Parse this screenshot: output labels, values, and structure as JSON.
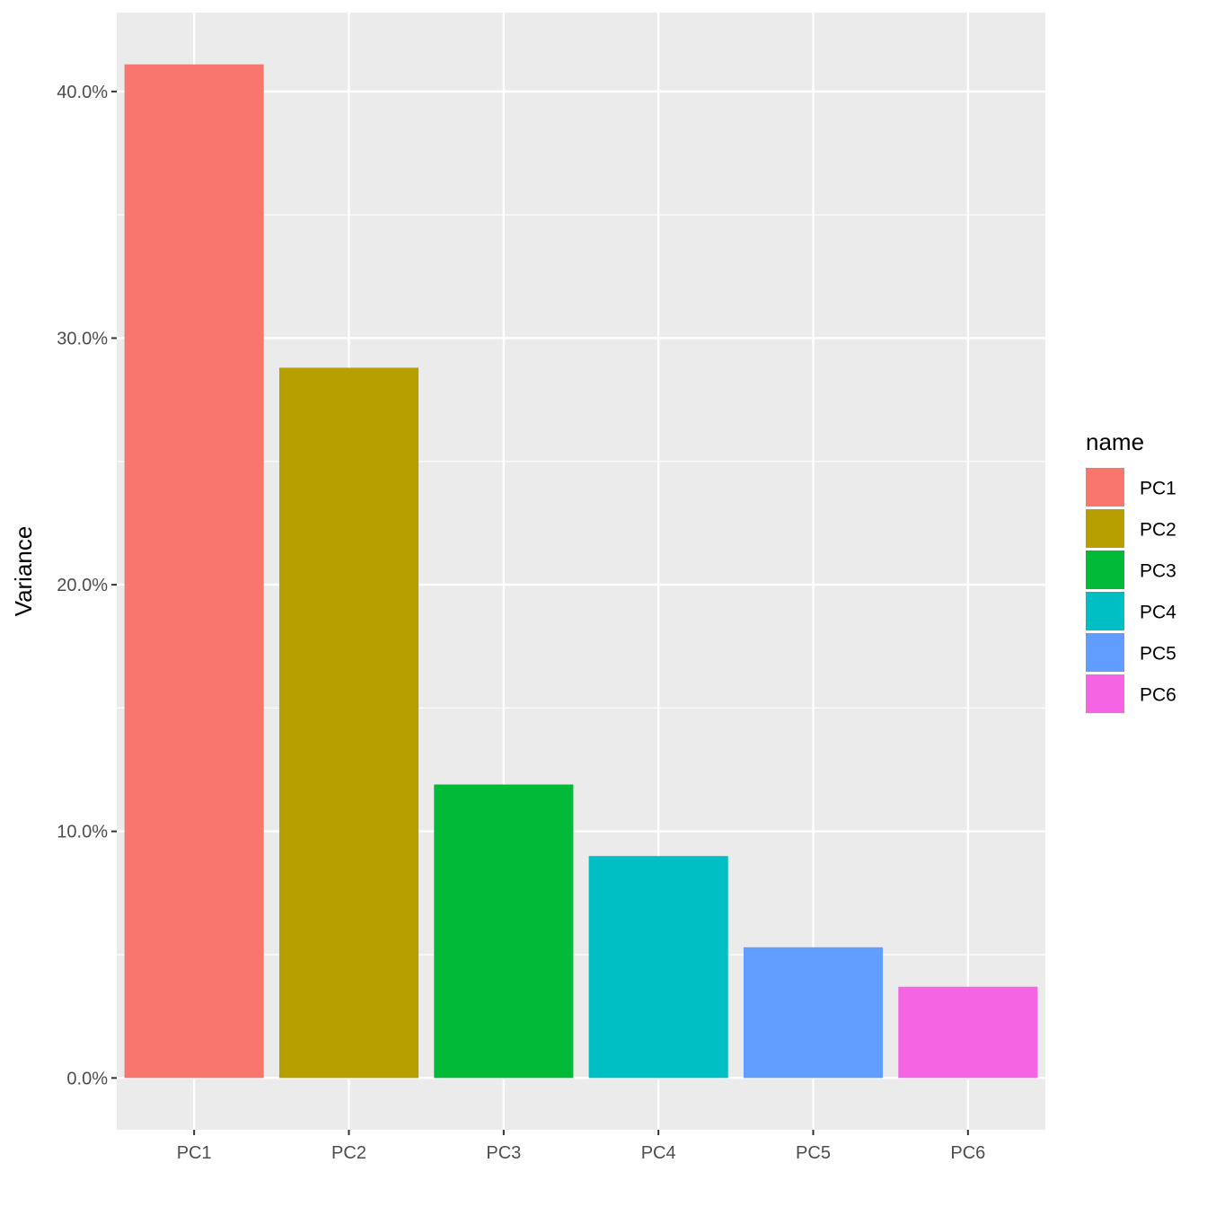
{
  "chart_data": {
    "type": "bar",
    "title": "",
    "xlabel": "",
    "ylabel": "Variance",
    "categories": [
      "PC1",
      "PC2",
      "PC3",
      "PC4",
      "PC5",
      "PC6"
    ],
    "values": [
      0.411,
      0.288,
      0.119,
      0.09,
      0.053,
      0.037
    ],
    "value_format": "percent",
    "ylim": [
      -0.021,
      0.432
    ],
    "y_ticks": [
      0.0,
      0.1,
      0.2,
      0.3,
      0.4
    ],
    "y_tick_labels": [
      "0.0%",
      "10.0%",
      "20.0%",
      "30.0%",
      "40.0%"
    ],
    "grid": true,
    "panel_background": "#ebebeb",
    "grid_color": "#ffffff",
    "colors": [
      "#F8766D",
      "#B79F00",
      "#00BA38",
      "#00BFC4",
      "#619CFF",
      "#F564E3"
    ],
    "legend": {
      "title": "name",
      "position": "right",
      "entries": [
        "PC1",
        "PC2",
        "PC3",
        "PC4",
        "PC5",
        "PC6"
      ]
    }
  }
}
